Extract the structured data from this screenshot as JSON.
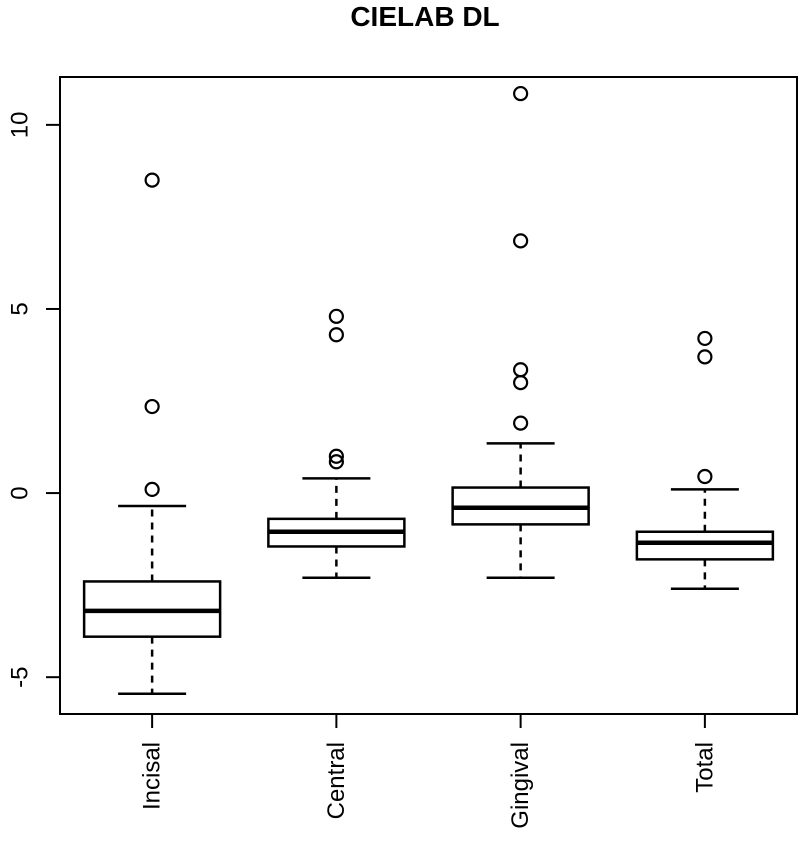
{
  "chart_data": {
    "type": "boxplot",
    "title": "CIELAB DL",
    "xlabel": "",
    "ylabel": "",
    "ylim": [
      -6.0,
      11.3
    ],
    "yticks": [
      -5,
      0,
      5,
      10
    ],
    "ytick_labels": [
      "-5",
      "0",
      "5",
      "10"
    ],
    "grid": false,
    "categories": [
      "Incisal",
      "Central",
      "Gingival",
      "Total"
    ],
    "boxes": [
      {
        "whisker_low": -5.45,
        "q1": -3.9,
        "median": -3.2,
        "q3": -2.4,
        "whisker_high": -0.35,
        "outliers": [
          0.1,
          2.35,
          8.5
        ]
      },
      {
        "whisker_low": -2.3,
        "q1": -1.45,
        "median": -1.05,
        "q3": -0.7,
        "whisker_high": 0.4,
        "outliers": [
          0.85,
          1.0,
          4.3,
          4.8
        ]
      },
      {
        "whisker_low": -2.3,
        "q1": -0.85,
        "median": -0.4,
        "q3": 0.15,
        "whisker_high": 1.35,
        "outliers": [
          1.9,
          3.0,
          3.35,
          6.85,
          10.85
        ]
      },
      {
        "whisker_low": -2.6,
        "q1": -1.8,
        "median": -1.35,
        "q3": -1.05,
        "whisker_high": 0.1,
        "outliers": [
          0.45,
          3.7,
          4.2
        ]
      }
    ]
  }
}
